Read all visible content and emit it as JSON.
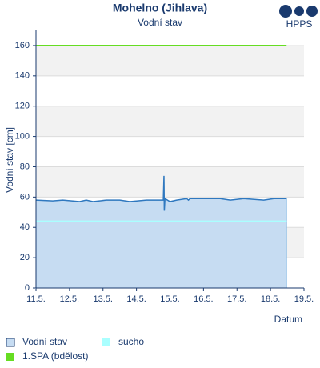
{
  "logo": "HPPS",
  "chart_data": {
    "type": "line",
    "title": "Mohelno  (Jihlava)",
    "subtitle": "Vodní stav",
    "y_label": "Vodní stav [cm]",
    "x_label": "Datum",
    "xlim": [
      11,
      19
    ],
    "ylim": [
      0,
      170
    ],
    "xticks": [
      {
        "value": 11,
        "label": "11.5."
      },
      {
        "value": 12,
        "label": "12.5."
      },
      {
        "value": 13,
        "label": "13.5."
      },
      {
        "value": 14,
        "label": "14.5."
      },
      {
        "value": 15,
        "label": "15.5."
      },
      {
        "value": 16,
        "label": "16.5."
      },
      {
        "value": 17,
        "label": "17.5."
      },
      {
        "value": 18,
        "label": "18.5."
      },
      {
        "value": 19,
        "label": "19.5."
      }
    ],
    "yticks": [
      0,
      20,
      40,
      60,
      80,
      100,
      120,
      140,
      160
    ],
    "grid": true,
    "series": [
      {
        "name": "Vodní stav",
        "color": "#2f78bf",
        "fill": "#c6dcf2",
        "x": [
          11.0,
          11.5,
          11.8,
          12.3,
          12.5,
          12.7,
          13.1,
          13.5,
          13.8,
          14.3,
          14.8,
          14.82,
          14.83,
          14.85,
          15.0,
          15.2,
          15.5,
          15.55,
          15.6,
          16.5,
          16.8,
          17.2,
          17.8,
          18.1,
          18.48
        ],
        "values": [
          58,
          57.5,
          58,
          57,
          58,
          57,
          58,
          58,
          57,
          58,
          58,
          74,
          51,
          59,
          57,
          58,
          59,
          58,
          59,
          59,
          58,
          59,
          58,
          59,
          59
        ]
      }
    ],
    "thresholds": [
      {
        "name": "sucho",
        "color": "#aaffff",
        "value": 44
      },
      {
        "name": "1.SPA (bdělost)",
        "color": "#66dd22",
        "value": 160
      }
    ]
  }
}
